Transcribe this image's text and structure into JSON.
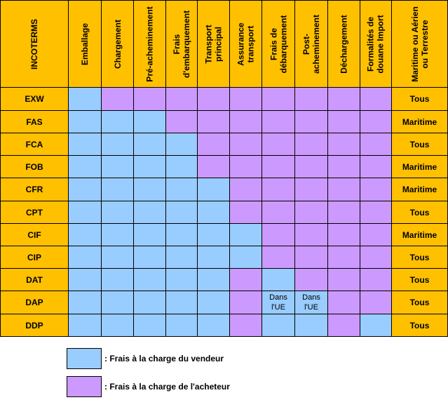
{
  "colors": {
    "vendor": "#99ccff",
    "buyer": "#cc99ff",
    "header": "#ffc000",
    "border": "#000000"
  },
  "table": {
    "corner_label": "INCOTERMS",
    "columns": [
      "Emballage",
      "Chargement",
      "Pré-acheminement",
      "Frais\nd'embarquement",
      "Transport\nprincipal",
      "Assurance\ntransport",
      "Frais de\ndébarquement",
      "Post-\nacheminement",
      "Déchargement",
      "Formalités de\ndouane Import"
    ],
    "mode_header": "Maritime ou Aérien\nou Terrestre",
    "rows": [
      {
        "term": "EXW",
        "mode": "Tous",
        "cells": [
          "V",
          "B",
          "B",
          "B",
          "B",
          "B",
          "B",
          "B",
          "B",
          "B"
        ],
        "notes": [
          "",
          "",
          "",
          "",
          "",
          "",
          "",
          "",
          "",
          ""
        ]
      },
      {
        "term": "FAS",
        "mode": "Maritime",
        "cells": [
          "V",
          "V",
          "V",
          "B",
          "B",
          "B",
          "B",
          "B",
          "B",
          "B"
        ],
        "notes": [
          "",
          "",
          "",
          "",
          "",
          "",
          "",
          "",
          "",
          ""
        ]
      },
      {
        "term": "FCA",
        "mode": "Tous",
        "cells": [
          "V",
          "V",
          "V",
          "V",
          "B",
          "B",
          "B",
          "B",
          "B",
          "B"
        ],
        "notes": [
          "",
          "",
          "",
          "",
          "",
          "",
          "",
          "",
          "",
          ""
        ]
      },
      {
        "term": "FOB",
        "mode": "Maritime",
        "cells": [
          "V",
          "V",
          "V",
          "V",
          "B",
          "B",
          "B",
          "B",
          "B",
          "B"
        ],
        "notes": [
          "",
          "",
          "",
          "",
          "",
          "",
          "",
          "",
          "",
          ""
        ]
      },
      {
        "term": "CFR",
        "mode": "Maritime",
        "cells": [
          "V",
          "V",
          "V",
          "V",
          "V",
          "B",
          "B",
          "B",
          "B",
          "B"
        ],
        "notes": [
          "",
          "",
          "",
          "",
          "",
          "",
          "",
          "",
          "",
          ""
        ]
      },
      {
        "term": "CPT",
        "mode": "Tous",
        "cells": [
          "V",
          "V",
          "V",
          "V",
          "V",
          "B",
          "B",
          "B",
          "B",
          "B"
        ],
        "notes": [
          "",
          "",
          "",
          "",
          "",
          "",
          "",
          "",
          "",
          ""
        ]
      },
      {
        "term": "CIF",
        "mode": "Maritime",
        "cells": [
          "V",
          "V",
          "V",
          "V",
          "V",
          "V",
          "B",
          "B",
          "B",
          "B"
        ],
        "notes": [
          "",
          "",
          "",
          "",
          "",
          "",
          "",
          "",
          "",
          ""
        ]
      },
      {
        "term": "CIP",
        "mode": "Tous",
        "cells": [
          "V",
          "V",
          "V",
          "V",
          "V",
          "V",
          "B",
          "B",
          "B",
          "B"
        ],
        "notes": [
          "",
          "",
          "",
          "",
          "",
          "",
          "",
          "",
          "",
          ""
        ]
      },
      {
        "term": "DAT",
        "mode": "Tous",
        "cells": [
          "V",
          "V",
          "V",
          "V",
          "V",
          "B",
          "V",
          "B",
          "B",
          "B"
        ],
        "notes": [
          "",
          "",
          "",
          "",
          "",
          "",
          "",
          "",
          "",
          ""
        ]
      },
      {
        "term": "DAP",
        "mode": "Tous",
        "cells": [
          "V",
          "V",
          "V",
          "V",
          "V",
          "B",
          "V",
          "V",
          "B",
          "B"
        ],
        "notes": [
          "",
          "",
          "",
          "",
          "",
          "",
          "Dans\nl'UE",
          "Dans\nl'UE",
          "",
          ""
        ]
      },
      {
        "term": "DDP",
        "mode": "Tous",
        "cells": [
          "V",
          "V",
          "V",
          "V",
          "V",
          "B",
          "V",
          "V",
          "B",
          "V"
        ],
        "notes": [
          "",
          "",
          "",
          "",
          "",
          "",
          "",
          "",
          "",
          ""
        ]
      }
    ]
  },
  "legend": [
    {
      "color_key": "vendor",
      "label": ": Frais à la charge du vendeur"
    },
    {
      "color_key": "buyer",
      "label": ": Frais à la charge de l'acheteur"
    }
  ]
}
